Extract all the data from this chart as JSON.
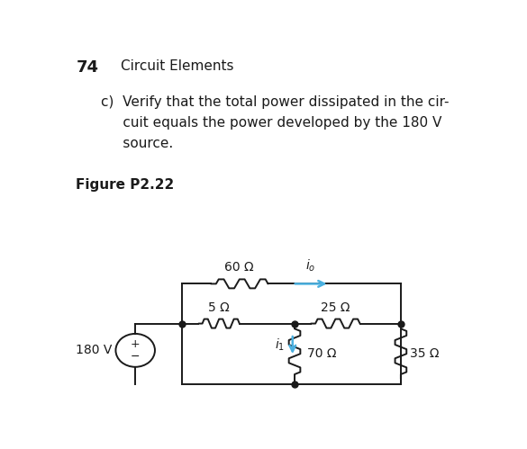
{
  "title_number": "74",
  "title_text": "Circuit Elements",
  "prob_line1": "c)  Verify that the total power dissipated in the cir-",
  "prob_line2": "     cuit equals the power developed by the 180 V",
  "prob_line3": "     source.",
  "figure_label": "Figure P2.22",
  "r60_label": "60 Ω",
  "r5_label": "5 Ω",
  "r25_label": "25 Ω",
  "r70_label": "70 Ω",
  "r35_label": "35 Ω",
  "vs_label": "180 V",
  "io_label": "i_o",
  "i1_label": "i_1",
  "background": "#ffffff",
  "circuit_color": "#1a1a1a",
  "highlight_color": "#4ab0e0",
  "lw": 1.4,
  "xl": 0.285,
  "xr": 0.82,
  "yt": 0.335,
  "yb": 0.045,
  "ym": 0.22,
  "xm": 0.56,
  "xvs": 0.17
}
